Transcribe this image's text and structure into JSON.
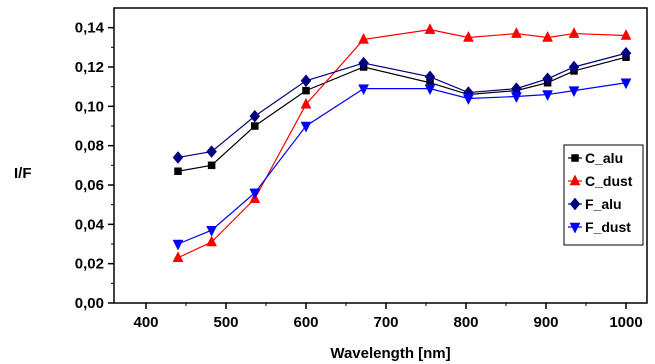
{
  "chart_data": {
    "type": "line",
    "xlabel": "Wavelength [nm]",
    "ylabel": "I/F",
    "xlim": [
      350,
      1030
    ],
    "ylim": [
      0.0,
      0.15
    ],
    "x_ticks": [
      400,
      500,
      600,
      700,
      800,
      900,
      1000
    ],
    "x_tick_labels": [
      "400",
      "500",
      "600",
      "700",
      "800",
      "900",
      "1000"
    ],
    "y_ticks": [
      0.0,
      0.02,
      0.04,
      0.06,
      0.08,
      0.1,
      0.12,
      0.14
    ],
    "y_tick_labels": [
      "0,00",
      "0,02",
      "0,04",
      "0,06",
      "0,08",
      "0,10",
      "0,12",
      "0,14"
    ],
    "grid": false,
    "legend_position": "right",
    "series": [
      {
        "name": "C_alu",
        "color": "#000000",
        "marker": "square",
        "x": [
          440,
          482,
          536,
          600,
          672,
          755,
          803,
          863,
          902,
          935,
          1000
        ],
        "y": [
          0.067,
          0.07,
          0.09,
          0.108,
          0.12,
          0.112,
          0.106,
          0.108,
          0.112,
          0.118,
          0.125
        ]
      },
      {
        "name": "C_dust",
        "color": "#ff0000",
        "marker": "triangle-up",
        "x": [
          440,
          482,
          536,
          600,
          672,
          755,
          803,
          863,
          902,
          935,
          1000
        ],
        "y": [
          0.023,
          0.031,
          0.053,
          0.101,
          0.134,
          0.139,
          0.135,
          0.137,
          0.135,
          0.137,
          0.136
        ]
      },
      {
        "name": "F_alu",
        "color": "#000080",
        "marker": "diamond",
        "x": [
          440,
          482,
          536,
          600,
          672,
          755,
          803,
          863,
          902,
          935,
          1000
        ],
        "y": [
          0.074,
          0.077,
          0.095,
          0.113,
          0.122,
          0.115,
          0.107,
          0.109,
          0.114,
          0.12,
          0.127
        ]
      },
      {
        "name": "F_dust",
        "color": "#0000ff",
        "marker": "triangle-down",
        "x": [
          440,
          482,
          536,
          600,
          672,
          755,
          803,
          863,
          902,
          935,
          1000
        ],
        "y": [
          0.03,
          0.037,
          0.056,
          0.09,
          0.109,
          0.109,
          0.104,
          0.105,
          0.106,
          0.108,
          0.112
        ]
      }
    ]
  }
}
